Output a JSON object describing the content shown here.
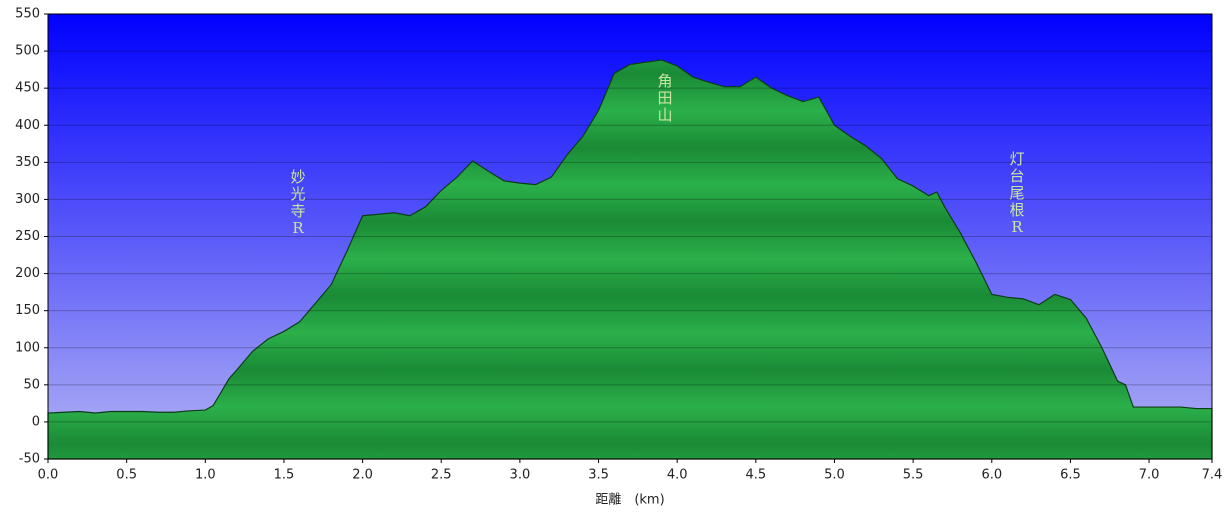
{
  "chart_data": {
    "type": "area",
    "x_label": "距離　(km)",
    "annotations": [
      "妙光寺R",
      "角田山",
      "灯台尾根R"
    ],
    "color": "#1e9e3e",
    "grid": true,
    "xlim": [
      0,
      7.4
    ],
    "ylim": [
      -50,
      550
    ],
    "xticks": [
      {
        "value": 0,
        "label": "0.0"
      },
      0.5,
      {
        "value": 1,
        "label": "1.0"
      },
      1.5,
      {
        "value": 2,
        "label": "2.0"
      },
      2.5,
      {
        "value": 3,
        "label": "3.0"
      },
      3.5,
      {
        "value": 4,
        "label": "4.0"
      },
      4.5,
      {
        "value": 5,
        "label": "5.0"
      },
      5.5,
      {
        "value": 6,
        "label": "6.0"
      },
      6.5,
      {
        "value": 7,
        "label": "7.0"
      },
      7.4
    ],
    "yticks": [
      -50,
      0,
      50,
      100,
      150,
      200,
      250,
      300,
      350,
      400,
      450,
      500,
      550
    ],
    "x": [
      0,
      0.1,
      0.2,
      0.3,
      0.4,
      0.5,
      0.6,
      0.7,
      0.8,
      0.9,
      1.0,
      1.05,
      1.1,
      1.15,
      1.2,
      1.3,
      1.4,
      1.5,
      1.6,
      1.7,
      1.8,
      1.9,
      2.0,
      2.1,
      2.2,
      2.3,
      2.4,
      2.5,
      2.6,
      2.7,
      2.8,
      2.9,
      3.0,
      3.1,
      3.2,
      3.3,
      3.4,
      3.5,
      3.6,
      3.7,
      3.8,
      3.9,
      4.0,
      4.1,
      4.2,
      4.3,
      4.4,
      4.5,
      4.6,
      4.7,
      4.8,
      4.9,
      5.0,
      5.1,
      5.2,
      5.3,
      5.4,
      5.5,
      5.6,
      5.65,
      5.7,
      5.8,
      5.9,
      6.0,
      6.1,
      6.2,
      6.3,
      6.4,
      6.5,
      6.6,
      6.7,
      6.8,
      6.85,
      6.9,
      6.95,
      7.0,
      7.1,
      7.2,
      7.3,
      7.4
    ],
    "values": [
      12,
      13,
      14,
      12,
      14,
      14,
      14,
      13,
      13,
      15,
      16,
      22,
      40,
      58,
      70,
      95,
      112,
      122,
      135,
      160,
      185,
      230,
      278,
      280,
      282,
      278,
      290,
      312,
      330,
      352,
      338,
      325,
      322,
      320,
      330,
      360,
      385,
      420,
      470,
      482,
      485,
      488,
      480,
      465,
      458,
      452,
      452,
      465,
      450,
      440,
      432,
      438,
      400,
      385,
      372,
      355,
      328,
      318,
      305,
      310,
      290,
      255,
      215,
      172,
      168,
      166,
      158,
      172,
      165,
      140,
      100,
      55,
      50,
      20,
      20,
      20,
      20,
      20,
      18,
      18
    ]
  }
}
